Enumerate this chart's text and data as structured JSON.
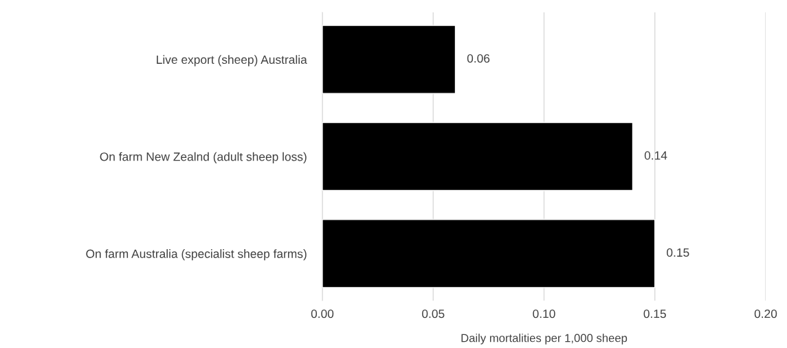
{
  "chart_data": {
    "type": "bar",
    "orientation": "horizontal",
    "categories": [
      "Live export (sheep) Australia",
      "On farm New Zealnd (adult sheep loss)",
      "On farm Australia (specialist sheep farms)"
    ],
    "values": [
      0.06,
      0.14,
      0.15
    ],
    "color": "#000000",
    "xlabel": "Daily mortalities per 1,000 sheep",
    "xlim": [
      0,
      0.2
    ],
    "xticks": [
      {
        "value": 0,
        "label": "0.00"
      },
      {
        "value": 0.05,
        "label": "0.05"
      },
      {
        "value": 0.1,
        "label": "0.10"
      },
      {
        "value": 0.15,
        "label": "0.15"
      },
      {
        "value": 0.2,
        "label": "0.20"
      }
    ],
    "grid": "x",
    "data_labels": true
  }
}
